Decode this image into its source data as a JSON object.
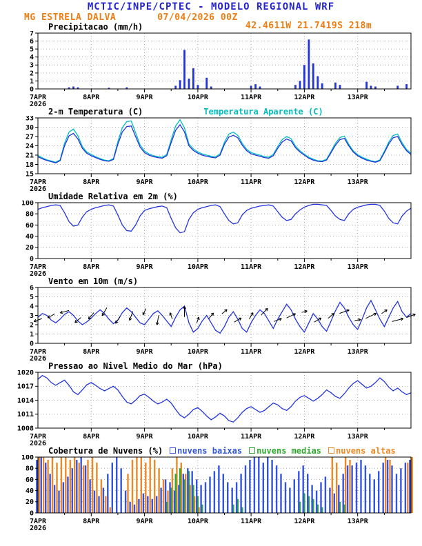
{
  "header": {
    "title": "MCTIC/INPE/CPTEC - MODELO REGIONAL WRF",
    "station": "MG ESTRELA DALVA",
    "run": "07/04/2026 00Z",
    "location": "42.4611W 21.7419S 218m"
  },
  "colors": {
    "header_blue": "#2323cc",
    "orange": "#ee7d11",
    "line_blue": "#2233dd",
    "cyan": "#00bcbc",
    "cloud_low_blue": "#3355dd",
    "cloud_mid_green": "#2fa82f",
    "cloud_high_orange": "#ee8822",
    "arrow_black": "#000000"
  },
  "x_axis": {
    "labels": [
      "7APR",
      "8APR",
      "9APR",
      "10APR",
      "11APR",
      "12APR",
      "13APR"
    ],
    "year_label": "2026",
    "total_hours": 168,
    "step_hours": 2
  },
  "chart_data": [
    {
      "key": "precip",
      "type": "bar",
      "title": "Precipitacao (mm/h)",
      "ylabel": "mm/h",
      "ylim": [
        0,
        7
      ],
      "yticks": [
        0,
        1,
        2,
        3,
        4,
        5,
        6,
        7
      ],
      "bar_color": "#2233dd",
      "values": [
        0,
        0,
        0,
        0,
        0,
        0,
        0,
        0.2,
        0.3,
        0.2,
        0,
        0,
        0,
        0,
        0,
        0,
        0.15,
        0,
        0,
        0,
        0.2,
        0,
        0,
        0,
        0,
        0,
        0,
        0,
        0,
        0,
        0,
        0.4,
        1.1,
        4.9,
        1.3,
        2.6,
        0.5,
        0,
        1.4,
        0.3,
        0,
        0,
        0,
        0,
        0,
        0,
        0,
        0,
        0.4,
        0.6,
        0.3,
        0,
        0,
        0,
        0,
        0,
        0,
        0,
        0.5,
        1.0,
        3.0,
        6.2,
        3.2,
        1.6,
        0.7,
        0,
        0,
        0.8,
        0.5,
        0,
        0,
        0,
        0,
        0,
        0.9,
        0.4,
        0.3,
        0,
        0,
        0,
        0,
        0.4,
        0,
        0.6,
        0
      ]
    },
    {
      "key": "temp",
      "type": "line",
      "title": "2-m Temperatura (C)",
      "secondary_title": {
        "text": "Temperatura Aparente (C)",
        "color": "#00bcbc"
      },
      "ylim": [
        15,
        33
      ],
      "yticks": [
        15,
        18,
        21,
        24,
        27,
        30,
        33
      ],
      "series": [
        {
          "name": "Temperatura Aparente (C)",
          "color": "#00bcbc",
          "values": [
            20.9,
            20.1,
            19.5,
            19.1,
            18.7,
            19.5,
            24.8,
            28.4,
            29.4,
            27.2,
            23.8,
            22.0,
            21.2,
            20.5,
            19.9,
            19.4,
            19.2,
            19.9,
            25.3,
            29.9,
            31.8,
            32.0,
            28.2,
            24.3,
            22.3,
            21.4,
            20.8,
            20.5,
            20.3,
            21.2,
            25.9,
            30.4,
            32.4,
            29.8,
            24.6,
            23.0,
            22.0,
            21.4,
            21.0,
            20.6,
            20.4,
            21.4,
            25.2,
            27.8,
            28.4,
            27.4,
            24.8,
            22.9,
            21.8,
            21.4,
            21.0,
            20.5,
            20.3,
            21.2,
            23.8,
            26.0,
            27.0,
            26.3,
            23.9,
            22.4,
            21.3,
            20.3,
            19.7,
            19.2,
            19.1,
            19.7,
            22.2,
            24.8,
            26.7,
            27.1,
            24.5,
            22.4,
            21.1,
            20.3,
            19.7,
            19.2,
            18.9,
            19.5,
            22.2,
            25.2,
            27.3,
            27.8,
            25.0,
            22.8,
            21.6
          ]
        },
        {
          "name": "2-m Temperatura (C)",
          "color": "#2233dd",
          "values": [
            20.5,
            19.8,
            19.3,
            18.9,
            18.5,
            19.2,
            24.0,
            27.2,
            28.0,
            26.2,
            23.2,
            21.6,
            20.8,
            20.2,
            19.6,
            19.2,
            19.0,
            19.6,
            24.5,
            28.5,
            30.2,
            30.4,
            27.0,
            23.6,
            21.8,
            21.0,
            20.5,
            20.2,
            20.0,
            20.8,
            25.0,
            29.0,
            30.8,
            28.5,
            24.0,
            22.5,
            21.6,
            21.0,
            20.6,
            20.3,
            20.1,
            21.0,
            24.5,
            26.8,
            27.4,
            26.6,
            24.2,
            22.4,
            21.4,
            21.0,
            20.6,
            20.2,
            20.0,
            20.8,
            23.2,
            25.2,
            26.2,
            25.6,
            23.4,
            22.0,
            21.0,
            20.0,
            19.4,
            19.0,
            18.9,
            19.4,
            21.8,
            24.2,
            26.0,
            26.4,
            24.0,
            22.0,
            20.8,
            20.0,
            19.4,
            19.0,
            18.7,
            19.2,
            21.8,
            24.6,
            26.6,
            27.0,
            24.4,
            22.4,
            21.2
          ]
        }
      ]
    },
    {
      "key": "rh",
      "type": "line",
      "title": "Umidade Relativa em 2m (%)",
      "ylim": [
        0,
        100
      ],
      "yticks": [
        0,
        20,
        40,
        60,
        80,
        100
      ],
      "series": [
        {
          "name": "Umidade Relativa (%)",
          "color": "#2233dd",
          "values": [
            88,
            91,
            93,
            95,
            96,
            95,
            82,
            66,
            58,
            60,
            74,
            84,
            88,
            91,
            93,
            95,
            96,
            94,
            78,
            60,
            50,
            49,
            60,
            76,
            86,
            89,
            91,
            93,
            94,
            91,
            72,
            55,
            46,
            48,
            70,
            82,
            88,
            91,
            93,
            95,
            96,
            93,
            80,
            68,
            62,
            64,
            78,
            86,
            90,
            92,
            94,
            95,
            96,
            94,
            84,
            74,
            68,
            70,
            80,
            87,
            92,
            95,
            97,
            97,
            96,
            95,
            86,
            76,
            70,
            68,
            80,
            88,
            92,
            94,
            96,
            97,
            97,
            95,
            85,
            72,
            64,
            62,
            76,
            85,
            90
          ]
        }
      ]
    },
    {
      "key": "wind",
      "type": "line",
      "title": "Vento em 10m (m/s)",
      "ylim": [
        0,
        6
      ],
      "yticks": [
        0,
        1,
        2,
        3,
        4,
        5,
        6
      ],
      "series": [
        {
          "name": "Velocidade do Vento (m/s)",
          "color": "#2233dd",
          "values": [
            2.8,
            3.2,
            3.0,
            2.5,
            2.2,
            2.6,
            3.1,
            3.4,
            3.0,
            2.4,
            2.0,
            2.3,
            2.7,
            3.2,
            3.6,
            3.2,
            2.6,
            2.1,
            2.5,
            3.3,
            3.8,
            3.4,
            2.8,
            2.2,
            2.0,
            2.6,
            3.2,
            3.5,
            3.0,
            2.4,
            1.8,
            2.8,
            3.6,
            4.0,
            2.2,
            1.2,
            1.6,
            2.4,
            3.0,
            2.2,
            1.4,
            1.1,
            1.8,
            2.8,
            3.4,
            2.6,
            1.6,
            1.2,
            2.2,
            3.0,
            3.6,
            3.2,
            2.4,
            1.6,
            2.6,
            3.4,
            4.2,
            3.6,
            2.6,
            1.8,
            1.2,
            2.2,
            3.2,
            2.6,
            1.8,
            1.3,
            2.4,
            3.5,
            4.4,
            3.8,
            2.8,
            2.0,
            1.5,
            2.6,
            3.8,
            4.6,
            3.6,
            2.6,
            1.8,
            2.8,
            3.8,
            4.5,
            3.4,
            2.8,
            3.2
          ]
        }
      ],
      "arrows": {
        "step_hours": 6,
        "color": "#000000",
        "directions_deg": [
          200,
          210,
          195,
          220,
          230,
          240,
          235,
          250,
          245,
          260,
          110,
          90,
          70,
          50,
          40,
          30,
          60,
          45,
          20,
          25,
          15,
          30,
          40,
          20,
          10,
          25,
          35,
          15,
          20
        ]
      }
    },
    {
      "key": "pressure",
      "type": "line",
      "title": "Pressao ao Nivel Medio do Mar (hPa)",
      "ylim": [
        1008,
        1020
      ],
      "yticks": [
        1008,
        1011,
        1014,
        1017,
        1020
      ],
      "series": [
        {
          "name": "Pressao ao Nivel Medio do Mar (hPa)",
          "color": "#2233dd",
          "values": [
            1018.5,
            1019.3,
            1018.8,
            1017.8,
            1017.2,
            1017.8,
            1018.3,
            1017.2,
            1015.8,
            1015.2,
            1016.2,
            1017.3,
            1017.8,
            1017.2,
            1016.5,
            1016.0,
            1016.5,
            1017.0,
            1016.2,
            1014.8,
            1013.6,
            1013.2,
            1014.0,
            1015.0,
            1015.3,
            1014.6,
            1013.8,
            1013.2,
            1013.6,
            1014.2,
            1013.4,
            1012.0,
            1010.8,
            1010.2,
            1011.0,
            1012.0,
            1012.4,
            1011.6,
            1010.6,
            1009.8,
            1010.4,
            1011.2,
            1010.6,
            1009.6,
            1009.3,
            1010.2,
            1011.4,
            1012.2,
            1012.6,
            1012.0,
            1011.4,
            1011.8,
            1012.6,
            1013.4,
            1013.0,
            1012.2,
            1011.8,
            1012.6,
            1013.8,
            1014.6,
            1015.0,
            1014.4,
            1013.8,
            1014.4,
            1015.2,
            1016.2,
            1015.6,
            1014.8,
            1014.4,
            1015.4,
            1016.6,
            1017.6,
            1018.2,
            1017.4,
            1016.6,
            1017.0,
            1017.8,
            1018.8,
            1018.0,
            1016.8,
            1016.0,
            1016.6,
            1015.8,
            1015.2,
            1015.6
          ]
        }
      ]
    },
    {
      "key": "clouds",
      "type": "multibar",
      "title": "Cobertura de Nuvens (%)",
      "ylim": [
        0,
        100
      ],
      "yticks": [
        0,
        20,
        40,
        60,
        80,
        100
      ],
      "legend": [
        {
          "label": "nuvens baixas",
          "color": "#3355dd"
        },
        {
          "label": "nuvens medias",
          "color": "#2fa82f"
        },
        {
          "label": "nuvens altas",
          "color": "#ee8822"
        }
      ],
      "series": [
        {
          "name": "nuvens altas",
          "color": "#ee8822",
          "values": [
            100,
            100,
            95,
            100,
            90,
            100,
            100,
            95,
            100,
            90,
            85,
            95,
            100,
            90,
            60,
            30,
            10,
            0,
            0,
            0,
            70,
            95,
            100,
            100,
            90,
            100,
            95,
            80,
            60,
            40,
            80,
            100,
            90,
            70,
            50,
            30,
            10,
            0,
            0,
            0,
            0,
            0,
            0,
            0,
            0,
            0,
            0,
            0,
            0,
            0,
            0,
            0,
            0,
            0,
            0,
            0,
            0,
            0,
            0,
            0,
            0,
            0,
            0,
            0,
            0,
            0,
            100,
            90,
            0,
            100,
            95,
            0,
            0,
            0,
            0,
            0,
            0,
            0,
            100,
            95,
            0,
            0,
            0,
            90,
            100
          ]
        },
        {
          "name": "nuvens medias",
          "color": "#2fa82f",
          "values": [
            0,
            0,
            0,
            0,
            0,
            0,
            0,
            0,
            0,
            0,
            0,
            0,
            0,
            0,
            0,
            0,
            0,
            0,
            0,
            0,
            0,
            0,
            0,
            0,
            0,
            0,
            0,
            0,
            0,
            20,
            45,
            70,
            80,
            60,
            75,
            50,
            30,
            15,
            0,
            0,
            0,
            0,
            0,
            0,
            15,
            25,
            10,
            0,
            0,
            0,
            0,
            0,
            0,
            0,
            0,
            0,
            0,
            0,
            0,
            20,
            35,
            30,
            25,
            15,
            10,
            0,
            0,
            0,
            20,
            15,
            0,
            0,
            0,
            0,
            0,
            0,
            0,
            0,
            0,
            0,
            0,
            0,
            0,
            0,
            0
          ]
        },
        {
          "name": "nuvens baixas",
          "color": "#3355dd",
          "values": [
            95,
            100,
            90,
            70,
            50,
            40,
            55,
            65,
            80,
            95,
            100,
            85,
            60,
            40,
            30,
            45,
            70,
            90,
            100,
            80,
            40,
            20,
            15,
            25,
            35,
            30,
            25,
            30,
            45,
            60,
            55,
            40,
            50,
            70,
            80,
            75,
            60,
            50,
            55,
            65,
            75,
            85,
            70,
            55,
            45,
            55,
            70,
            85,
            95,
            100,
            100,
            90,
            100,
            95,
            85,
            70,
            55,
            45,
            60,
            75,
            85,
            70,
            50,
            40,
            55,
            65,
            45,
            35,
            50,
            70,
            85,
            85,
            90,
            95,
            85,
            70,
            60,
            75,
            90,
            95,
            85,
            70,
            80,
            90,
            95
          ]
        }
      ]
    }
  ]
}
